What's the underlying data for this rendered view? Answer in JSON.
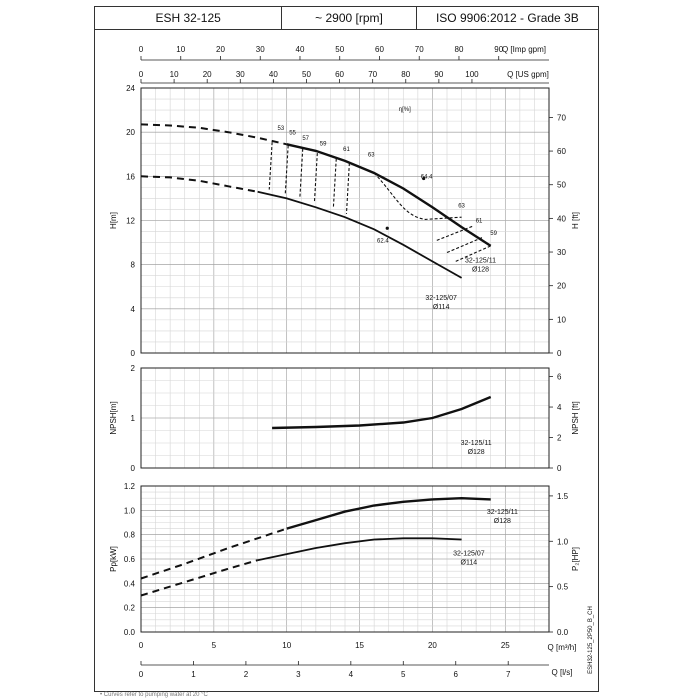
{
  "header": {
    "model": "ESH 32-125",
    "speed": "~ 2900 [rpm]",
    "standard": "ISO 9906:2012 - Grade 3B"
  },
  "axes": {
    "q_imp_label": "Q [Imp gpm]",
    "q_us_label": "Q [US gpm]",
    "q_m3h_label": "Q [m³/h]",
    "q_ls_label": "Q [l/s]",
    "h_m_label": "H[m]",
    "h_ft_label": "H [ft]",
    "npsh_m_label": "NPSH[m]",
    "npsh_ft_label": "NPSH [ft]",
    "p_kw_label": "Pp[kW]",
    "p_hp_label": "P₂[HP]",
    "eta_label": "η[%]"
  },
  "side_code": "ESH32-125_2P50_B_CH",
  "footer_note": "• Curves refer to pumping water at 20 °C",
  "chart_data": {
    "type": "line",
    "x_unit": "Q [m3/h]",
    "xlim": [
      0,
      28
    ],
    "secondary_x": {
      "imp_gpm": {
        "ticks": [
          0,
          10,
          20,
          30,
          40,
          50,
          60,
          70,
          80,
          90
        ]
      },
      "us_gpm": {
        "ticks": [
          0,
          10,
          20,
          30,
          40,
          50,
          60,
          70,
          80,
          90,
          100
        ]
      },
      "l_s": {
        "ticks": [
          0,
          1,
          2,
          3,
          4,
          5,
          6,
          7
        ]
      },
      "m3h_ticks": [
        0,
        5,
        10,
        15,
        20,
        25
      ]
    },
    "panels": [
      {
        "id": "head",
        "ylabel": "H[m]",
        "ylim": [
          0,
          24
        ],
        "yticks": [
          0,
          4,
          8,
          12,
          16,
          20,
          24
        ],
        "secondary_ylabel": "H [ft]",
        "secondary_yticks": [
          0,
          10,
          20,
          30,
          40,
          50,
          60,
          70
        ],
        "series": [
          {
            "name": "32-125/11 Ø128",
            "dashed": [
              [
                0,
                20.7
              ],
              [
                2,
                20.6
              ],
              [
                4,
                20.4
              ],
              [
                6,
                20.0
              ],
              [
                8,
                19.5
              ],
              [
                10,
                18.9
              ]
            ],
            "solid": [
              [
                10,
                18.9
              ],
              [
                12,
                18.3
              ],
              [
                14,
                17.4
              ],
              [
                16,
                16.3
              ],
              [
                18,
                14.9
              ],
              [
                20,
                13.2
              ],
              [
                22,
                11.4
              ],
              [
                24,
                9.7
              ]
            ]
          },
          {
            "name": "32-125/07 Ø114",
            "dashed": [
              [
                0,
                16.0
              ],
              [
                2,
                15.9
              ],
              [
                4,
                15.6
              ],
              [
                6,
                15.1
              ],
              [
                8,
                14.6
              ]
            ],
            "solid": [
              [
                8,
                14.6
              ],
              [
                10,
                14.0
              ],
              [
                12,
                13.2
              ],
              [
                14,
                12.3
              ],
              [
                16,
                11.2
              ],
              [
                18,
                9.8
              ],
              [
                20,
                8.3
              ],
              [
                22,
                6.8
              ]
            ]
          }
        ],
        "efficiency_labels": [
          "53",
          "55",
          "57",
          "59",
          "61",
          "63",
          "64.4",
          "63",
          "61",
          "59"
        ],
        "efficiency_label_low": "62.4"
      },
      {
        "id": "npsh",
        "ylabel": "NPSH[m]",
        "ylim": [
          0,
          2
        ],
        "yticks": [
          0,
          1,
          2
        ],
        "secondary_ylabel": "NPSH [ft]",
        "secondary_yticks": [
          0,
          2,
          4,
          6
        ],
        "series": [
          {
            "name": "32-125/11 Ø128",
            "solid": [
              [
                9,
                0.8
              ],
              [
                12,
                0.82
              ],
              [
                15,
                0.85
              ],
              [
                18,
                0.91
              ],
              [
                20,
                1.0
              ],
              [
                22,
                1.18
              ],
              [
                24,
                1.42
              ]
            ]
          }
        ]
      },
      {
        "id": "power",
        "ylabel": "Pp[kW]",
        "ylim": [
          0,
          1.2
        ],
        "yticks": [
          0.0,
          0.2,
          0.4,
          0.6,
          0.8,
          1.0,
          1.2
        ],
        "secondary_ylabel": "P2[HP]",
        "secondary_yticks": [
          0.0,
          0.5,
          1.0,
          1.5
        ],
        "series": [
          {
            "name": "32-125/11 Ø128",
            "dashed": [
              [
                0,
                0.44
              ],
              [
                3,
                0.56
              ],
              [
                6,
                0.69
              ],
              [
                8,
                0.77
              ],
              [
                10,
                0.85
              ]
            ],
            "solid": [
              [
                10,
                0.85
              ],
              [
                12,
                0.92
              ],
              [
                14,
                0.99
              ],
              [
                16,
                1.04
              ],
              [
                18,
                1.07
              ],
              [
                20,
                1.09
              ],
              [
                22,
                1.1
              ],
              [
                24,
                1.09
              ]
            ]
          },
          {
            "name": "32-125/07 Ø114",
            "dashed": [
              [
                0,
                0.3
              ],
              [
                3,
                0.41
              ],
              [
                6,
                0.52
              ],
              [
                8,
                0.59
              ]
            ],
            "solid": [
              [
                8,
                0.59
              ],
              [
                10,
                0.64
              ],
              [
                12,
                0.69
              ],
              [
                14,
                0.73
              ],
              [
                16,
                0.76
              ],
              [
                18,
                0.77
              ],
              [
                20,
                0.77
              ],
              [
                22,
                0.76
              ]
            ]
          }
        ]
      }
    ]
  }
}
